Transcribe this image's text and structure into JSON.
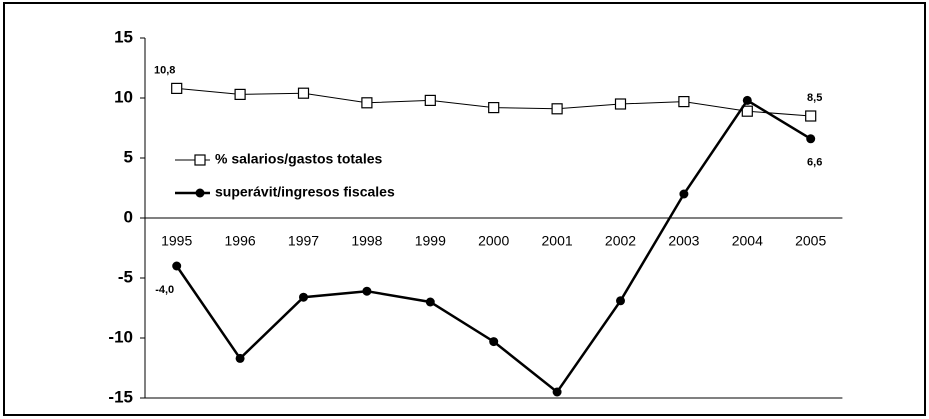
{
  "chart_data": {
    "type": "line",
    "categories": [
      "1995",
      "1996",
      "1997",
      "1998",
      "1999",
      "2000",
      "2001",
      "2002",
      "2003",
      "2004",
      "2005"
    ],
    "series": [
      {
        "name": "% salarios/gastos totales",
        "color": "#000000",
        "marker": "square",
        "values": [
          10.8,
          10.3,
          10.4,
          9.6,
          9.8,
          9.2,
          9.1,
          9.5,
          9.7,
          8.9,
          8.5
        ],
        "value_labels": [
          "10,8",
          null,
          null,
          null,
          null,
          null,
          null,
          null,
          null,
          null,
          "8,5"
        ]
      },
      {
        "name": "superávit/ingresos fiscales",
        "color": "#000000",
        "marker": "circle",
        "values": [
          -4.0,
          -11.7,
          -6.6,
          -6.1,
          -7.0,
          -10.3,
          -14.5,
          -6.9,
          2.0,
          9.8,
          6.6
        ],
        "value_labels": [
          "-4,0",
          null,
          null,
          null,
          null,
          null,
          null,
          null,
          null,
          null,
          "6,6"
        ]
      }
    ],
    "ylim": [
      -15,
      15
    ],
    "yticks": [
      -15,
      -10,
      -5,
      0,
      5,
      10,
      15
    ],
    "grid": false,
    "legend": "left"
  }
}
